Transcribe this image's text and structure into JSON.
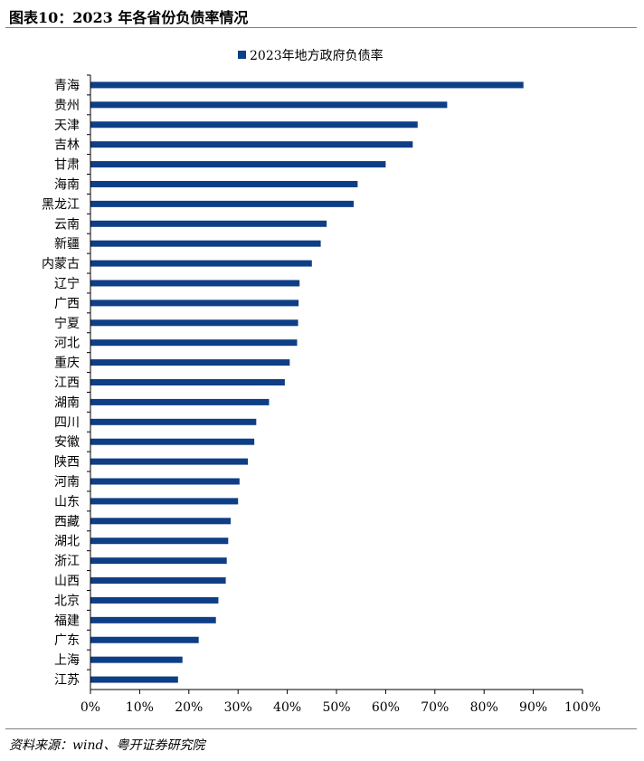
{
  "figure": {
    "title": "图表10：2023 年各省份负债率情况",
    "source": "资料来源：wind、粤开证券研究院"
  },
  "colors": {
    "bar": "#0e3e86",
    "axis": "#000000",
    "rule": "#7f7f7f"
  },
  "chart_data": {
    "type": "bar",
    "orientation": "horizontal",
    "categories": [
      "青海",
      "贵州",
      "天津",
      "吉林",
      "甘肃",
      "海南",
      "黑龙江",
      "云南",
      "新疆",
      "内蒙古",
      "辽宁",
      "广西",
      "宁夏",
      "河北",
      "重庆",
      "江西",
      "湖南",
      "四川",
      "安徽",
      "陕西",
      "河南",
      "山东",
      "西藏",
      "湖北",
      "浙江",
      "山西",
      "北京",
      "福建",
      "广东",
      "上海",
      "江苏"
    ],
    "series": [
      {
        "name": "2023年地方政府负债率",
        "values": [
          88,
          72.5,
          66.5,
          65.5,
          60,
          54.3,
          53.5,
          48,
          46.8,
          45,
          42.5,
          42.3,
          42.2,
          42,
          40.5,
          39.5,
          36.3,
          33.7,
          33.3,
          32,
          30.3,
          30,
          28.5,
          28,
          27.7,
          27.5,
          26,
          25.5,
          22,
          18.7,
          17.8
        ]
      }
    ],
    "xlim": [
      0,
      100
    ],
    "xticks": [
      "0%",
      "10%",
      "20%",
      "30%",
      "40%",
      "50%",
      "60%",
      "70%",
      "80%",
      "90%",
      "100%"
    ],
    "grid": false,
    "legend_position": "top-center"
  }
}
